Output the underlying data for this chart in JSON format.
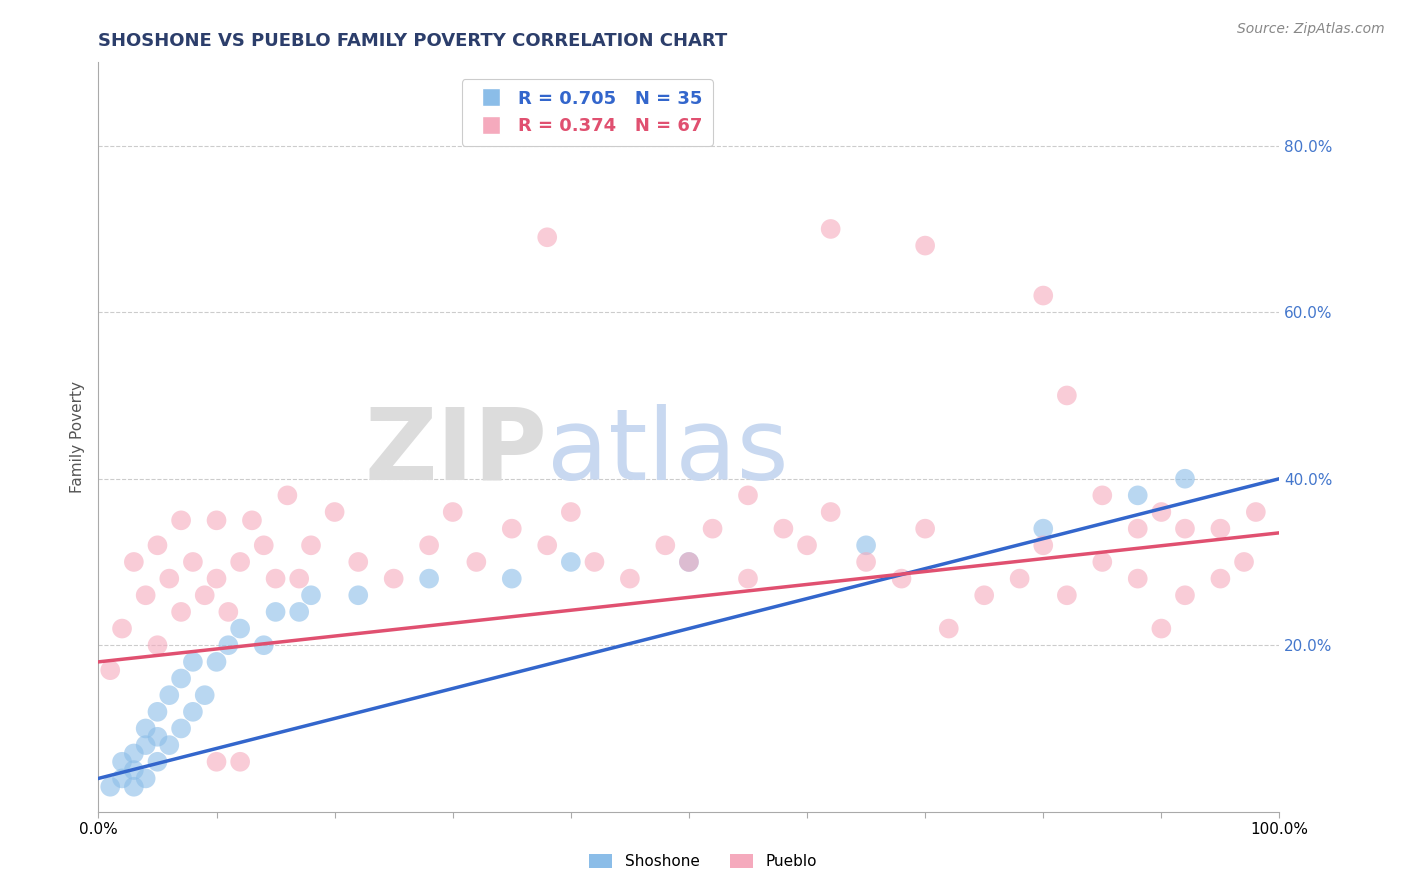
{
  "title": "SHOSHONE VS PUEBLO FAMILY POVERTY CORRELATION CHART",
  "source_text": "Source: ZipAtlas.com",
  "ylabel": "Family Poverty",
  "xlim": [
    0.0,
    1.0
  ],
  "ylim": [
    0.0,
    0.9
  ],
  "y_tick_labels": [
    "20.0%",
    "40.0%",
    "60.0%",
    "80.0%"
  ],
  "y_tick_values": [
    0.2,
    0.4,
    0.6,
    0.8
  ],
  "shoshone_R": 0.705,
  "shoshone_N": 35,
  "pueblo_R": 0.374,
  "pueblo_N": 67,
  "shoshone_color": "#8BBDE8",
  "pueblo_color": "#F5AABD",
  "shoshone_line_color": "#3366CC",
  "pueblo_line_color": "#E05070",
  "title_color": "#2C3E6B",
  "axis_label_color": "#4477CC",
  "watermark_zip_color": "#DCDCDC",
  "watermark_atlas_color": "#C8D8F0",
  "background_color": "#FFFFFF",
  "grid_color": "#CCCCCC",
  "shoshone_scatter": [
    [
      0.01,
      0.03
    ],
    [
      0.02,
      0.04
    ],
    [
      0.02,
      0.06
    ],
    [
      0.03,
      0.03
    ],
    [
      0.03,
      0.05
    ],
    [
      0.03,
      0.07
    ],
    [
      0.04,
      0.04
    ],
    [
      0.04,
      0.08
    ],
    [
      0.04,
      0.1
    ],
    [
      0.05,
      0.06
    ],
    [
      0.05,
      0.09
    ],
    [
      0.05,
      0.12
    ],
    [
      0.06,
      0.08
    ],
    [
      0.06,
      0.14
    ],
    [
      0.07,
      0.1
    ],
    [
      0.07,
      0.16
    ],
    [
      0.08,
      0.12
    ],
    [
      0.08,
      0.18
    ],
    [
      0.09,
      0.14
    ],
    [
      0.1,
      0.18
    ],
    [
      0.11,
      0.2
    ],
    [
      0.12,
      0.22
    ],
    [
      0.14,
      0.2
    ],
    [
      0.15,
      0.24
    ],
    [
      0.17,
      0.24
    ],
    [
      0.18,
      0.26
    ],
    [
      0.22,
      0.26
    ],
    [
      0.28,
      0.28
    ],
    [
      0.35,
      0.28
    ],
    [
      0.4,
      0.3
    ],
    [
      0.5,
      0.3
    ],
    [
      0.65,
      0.32
    ],
    [
      0.8,
      0.34
    ],
    [
      0.88,
      0.38
    ],
    [
      0.92,
      0.4
    ]
  ],
  "pueblo_scatter": [
    [
      0.01,
      0.17
    ],
    [
      0.02,
      0.22
    ],
    [
      0.03,
      0.3
    ],
    [
      0.04,
      0.26
    ],
    [
      0.05,
      0.2
    ],
    [
      0.05,
      0.32
    ],
    [
      0.06,
      0.28
    ],
    [
      0.07,
      0.24
    ],
    [
      0.07,
      0.35
    ],
    [
      0.08,
      0.3
    ],
    [
      0.09,
      0.26
    ],
    [
      0.1,
      0.28
    ],
    [
      0.1,
      0.35
    ],
    [
      0.11,
      0.24
    ],
    [
      0.12,
      0.3
    ],
    [
      0.13,
      0.35
    ],
    [
      0.14,
      0.32
    ],
    [
      0.15,
      0.28
    ],
    [
      0.16,
      0.38
    ],
    [
      0.17,
      0.28
    ],
    [
      0.18,
      0.32
    ],
    [
      0.2,
      0.36
    ],
    [
      0.22,
      0.3
    ],
    [
      0.25,
      0.28
    ],
    [
      0.28,
      0.32
    ],
    [
      0.3,
      0.36
    ],
    [
      0.32,
      0.3
    ],
    [
      0.35,
      0.34
    ],
    [
      0.38,
      0.32
    ],
    [
      0.4,
      0.36
    ],
    [
      0.42,
      0.3
    ],
    [
      0.45,
      0.28
    ],
    [
      0.48,
      0.32
    ],
    [
      0.5,
      0.3
    ],
    [
      0.52,
      0.34
    ],
    [
      0.38,
      0.69
    ],
    [
      0.55,
      0.28
    ],
    [
      0.58,
      0.34
    ],
    [
      0.6,
      0.32
    ],
    [
      0.62,
      0.36
    ],
    [
      0.65,
      0.3
    ],
    [
      0.68,
      0.28
    ],
    [
      0.7,
      0.34
    ],
    [
      0.72,
      0.22
    ],
    [
      0.75,
      0.26
    ],
    [
      0.78,
      0.28
    ],
    [
      0.8,
      0.32
    ],
    [
      0.82,
      0.26
    ],
    [
      0.85,
      0.3
    ],
    [
      0.88,
      0.28
    ],
    [
      0.9,
      0.22
    ],
    [
      0.92,
      0.26
    ],
    [
      0.95,
      0.28
    ],
    [
      0.97,
      0.3
    ],
    [
      0.1,
      0.06
    ],
    [
      0.12,
      0.06
    ],
    [
      0.62,
      0.7
    ],
    [
      0.7,
      0.68
    ],
    [
      0.8,
      0.62
    ],
    [
      0.82,
      0.5
    ],
    [
      0.85,
      0.38
    ],
    [
      0.88,
      0.34
    ],
    [
      0.9,
      0.36
    ],
    [
      0.92,
      0.34
    ],
    [
      0.95,
      0.34
    ],
    [
      0.98,
      0.36
    ],
    [
      0.55,
      0.38
    ]
  ],
  "shoshone_line": {
    "x0": 0.0,
    "y0": 0.04,
    "x1": 1.0,
    "y1": 0.4
  },
  "pueblo_line": {
    "x0": 0.0,
    "y0": 0.18,
    "x1": 1.0,
    "y1": 0.335
  }
}
